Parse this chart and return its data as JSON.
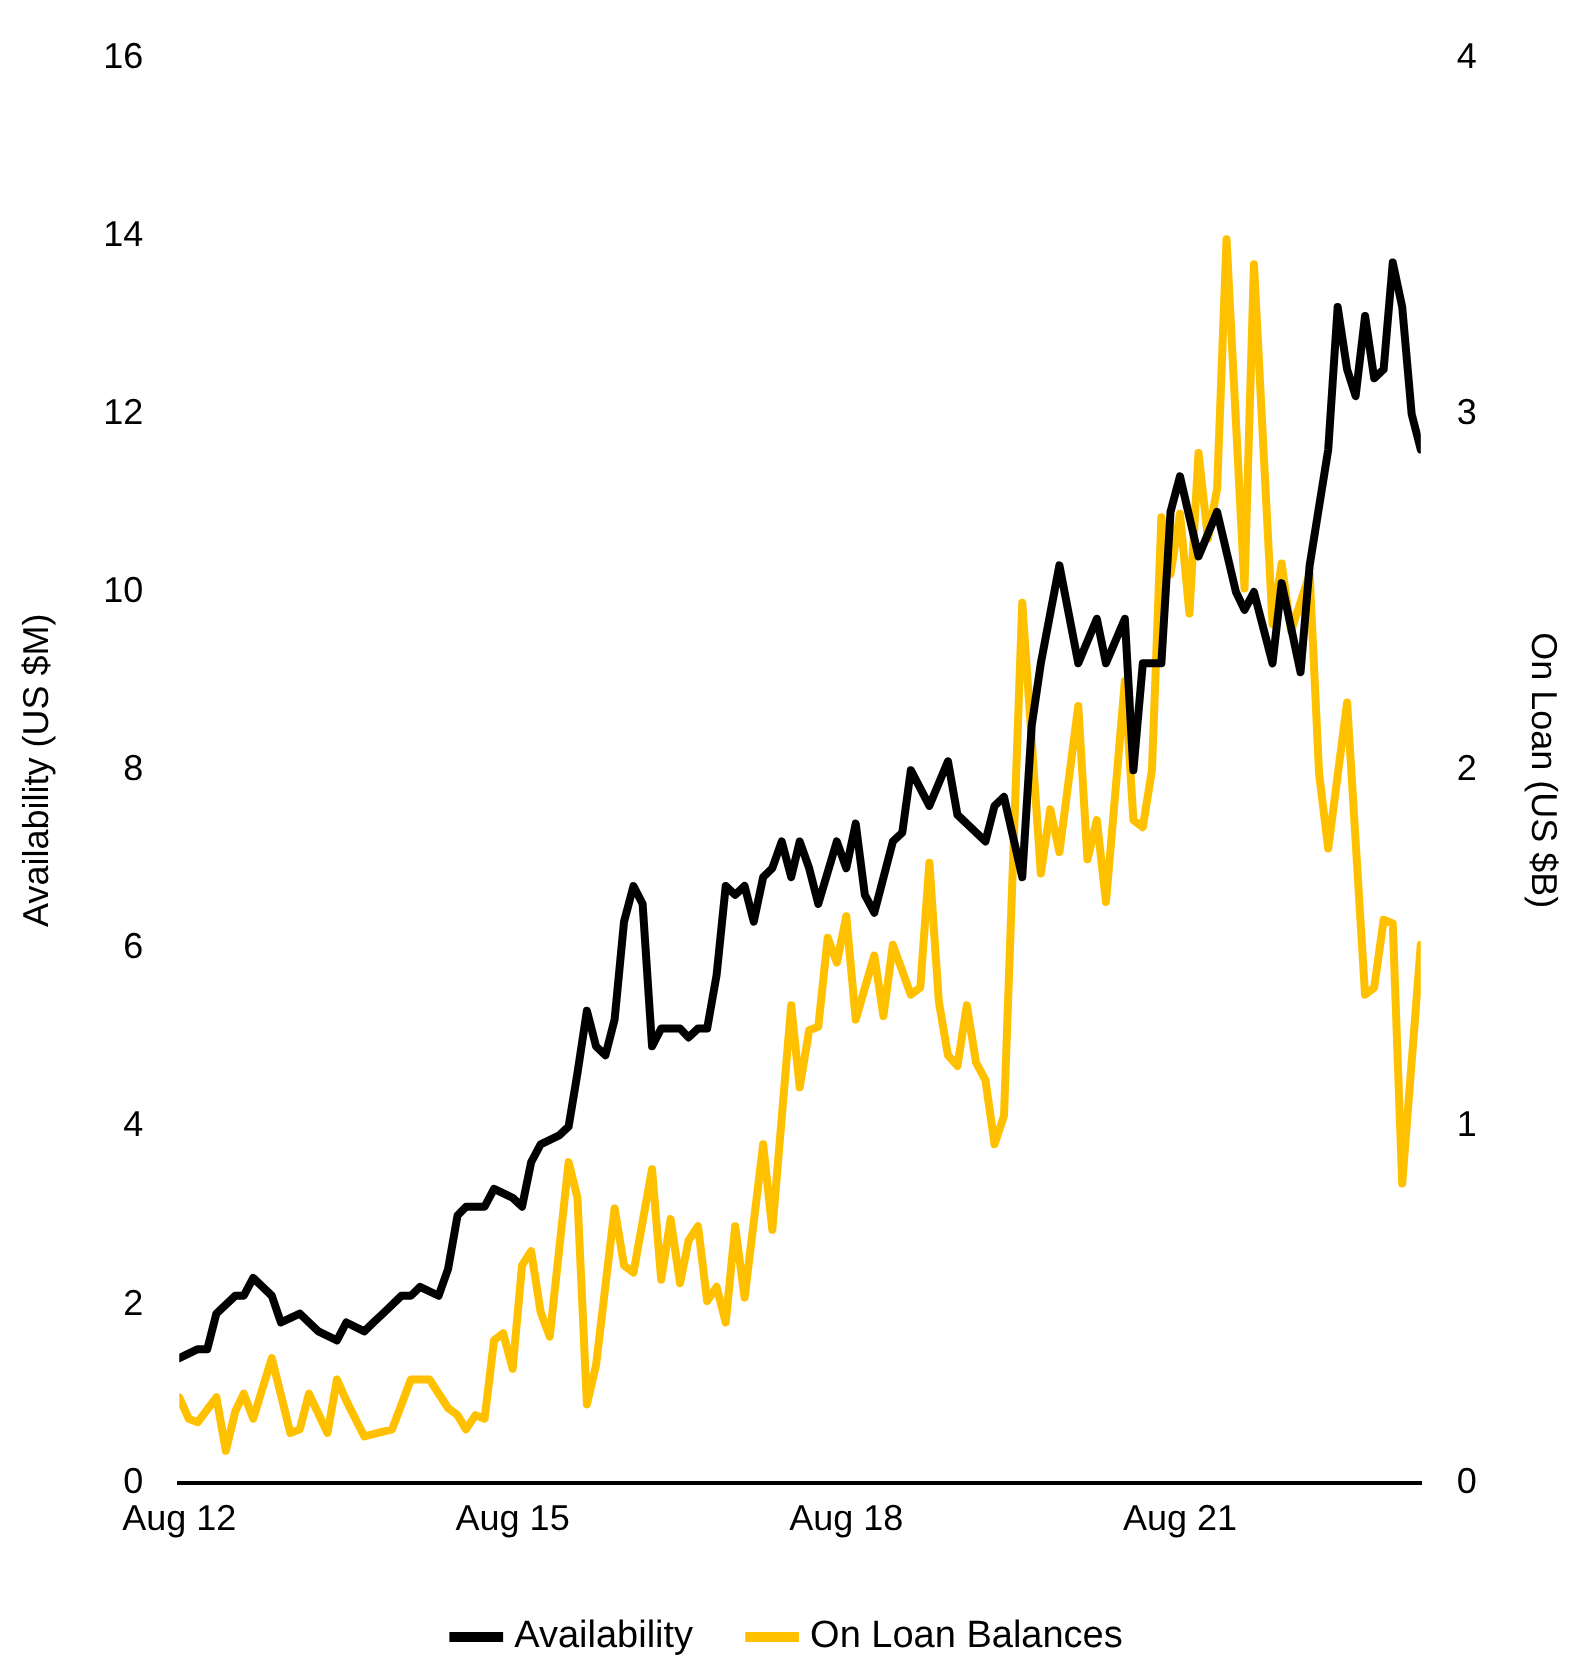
{
  "chart_data": {
    "type": "line",
    "ylabel": "Availability (US $M)",
    "y2label": "On Loan (US $B)",
    "xlim": [
      "2012-08",
      "2023-10"
    ],
    "xticks": [
      {
        "value": "2012-08",
        "label": "Aug 12"
      },
      {
        "value": "2015-08",
        "label": "Aug 15"
      },
      {
        "value": "2018-08",
        "label": "Aug 18"
      },
      {
        "value": "2021-08",
        "label": "Aug 21"
      }
    ],
    "ylim": [
      0,
      16
    ],
    "yticks": [
      0,
      2,
      4,
      6,
      8,
      10,
      12,
      14,
      16
    ],
    "y2lim": [
      0,
      4
    ],
    "y2ticks": [
      0,
      1,
      2,
      3,
      4
    ],
    "legend": "bottom",
    "grid": false,
    "marker": "none",
    "line_style": "solid",
    "series": [
      {
        "name": "Availability",
        "color": "#000000",
        "x": [
          "2012-08",
          "2012-10",
          "2012-11",
          "2012-12",
          "2013-02",
          "2013-03",
          "2013-04",
          "2013-06",
          "2013-07",
          "2013-09",
          "2013-10",
          "2013-11",
          "2014-01",
          "2014-02",
          "2014-04",
          "2014-05",
          "2014-06",
          "2014-08",
          "2014-09",
          "2014-10",
          "2014-12",
          "2015-01",
          "2015-02",
          "2015-03",
          "2015-05",
          "2015-06",
          "2015-08",
          "2015-09",
          "2015-10",
          "2015-11",
          "2016-01",
          "2016-02",
          "2016-03",
          "2016-04",
          "2016-05",
          "2016-06",
          "2016-07",
          "2016-08",
          "2016-09",
          "2016-10",
          "2016-11",
          "2016-12",
          "2017-02",
          "2017-03",
          "2017-04",
          "2017-05",
          "2017-06",
          "2017-07",
          "2017-08",
          "2017-09",
          "2017-10",
          "2017-11",
          "2017-12",
          "2018-01",
          "2018-02",
          "2018-03",
          "2018-04",
          "2018-05",
          "2018-07",
          "2018-08",
          "2018-09",
          "2018-10",
          "2018-11",
          "2019-01",
          "2019-02",
          "2019-03",
          "2019-05",
          "2019-07",
          "2019-08",
          "2019-11",
          "2019-12",
          "2020-01",
          "2020-03",
          "2020-04",
          "2020-05",
          "2020-07",
          "2020-09",
          "2020-11",
          "2020-12",
          "2021-02",
          "2021-03",
          "2021-04",
          "2021-06",
          "2021-07",
          "2021-08",
          "2021-10",
          "2021-12",
          "2022-02",
          "2022-03",
          "2022-04",
          "2022-06",
          "2022-07",
          "2022-09",
          "2022-10",
          "2022-12",
          "2023-01",
          "2023-02",
          "2023-03",
          "2023-04",
          "2023-05",
          "2023-06",
          "2023-07",
          "2023-08",
          "2023-09",
          "2023-10"
        ],
        "values": [
          1.4,
          1.5,
          1.5,
          1.9,
          2.1,
          2.1,
          2.3,
          2.1,
          1.8,
          1.9,
          1.8,
          1.7,
          1.6,
          1.8,
          1.7,
          1.8,
          1.9,
          2.1,
          2.1,
          2.2,
          2.1,
          2.4,
          3.0,
          3.1,
          3.1,
          3.3,
          3.2,
          3.1,
          3.6,
          3.8,
          3.9,
          4.0,
          4.6,
          5.3,
          4.9,
          4.8,
          5.2,
          6.3,
          6.7,
          6.5,
          4.9,
          5.1,
          5.1,
          5.0,
          5.1,
          5.1,
          5.7,
          6.7,
          6.6,
          6.7,
          6.3,
          6.8,
          6.9,
          7.2,
          6.8,
          7.2,
          6.9,
          6.5,
          7.2,
          6.9,
          7.4,
          6.6,
          6.4,
          7.2,
          7.3,
          8.0,
          7.6,
          8.1,
          7.5,
          7.2,
          7.6,
          7.7,
          6.8,
          8.5,
          9.2,
          10.3,
          9.2,
          9.7,
          9.2,
          9.7,
          8.0,
          9.2,
          9.2,
          10.9,
          11.3,
          10.4,
          10.9,
          10.0,
          9.8,
          10.0,
          9.2,
          10.1,
          9.1,
          10.3,
          11.6,
          13.2,
          12.5,
          12.2,
          13.1,
          12.4,
          12.5,
          13.7,
          13.2,
          12.0,
          11.6
        ]
      },
      {
        "name": "On Loan Balances",
        "color": "#ffc000",
        "axis": "y2",
        "x": [
          "2012-08",
          "2012-09",
          "2012-10",
          "2012-12",
          "2013-01",
          "2013-02",
          "2013-03",
          "2013-04",
          "2013-06",
          "2013-08",
          "2013-09",
          "2013-10",
          "2013-12",
          "2014-01",
          "2014-02",
          "2014-04",
          "2014-07",
          "2014-09",
          "2014-11",
          "2015-01",
          "2015-02",
          "2015-03",
          "2015-04",
          "2015-05",
          "2015-06",
          "2015-07",
          "2015-08",
          "2015-09",
          "2015-10",
          "2015-11",
          "2015-12",
          "2016-02",
          "2016-03",
          "2016-04",
          "2016-05",
          "2016-07",
          "2016-08",
          "2016-09",
          "2016-11",
          "2016-12",
          "2017-01",
          "2017-02",
          "2017-03",
          "2017-04",
          "2017-05",
          "2017-06",
          "2017-07",
          "2017-08",
          "2017-09",
          "2017-11",
          "2017-12",
          "2018-02",
          "2018-03",
          "2018-04",
          "2018-05",
          "2018-06",
          "2018-07",
          "2018-08",
          "2018-09",
          "2018-11",
          "2018-12",
          "2019-01",
          "2019-03",
          "2019-04",
          "2019-05",
          "2019-06",
          "2019-07",
          "2019-08",
          "2019-09",
          "2019-10",
          "2019-11",
          "2019-12",
          "2020-01",
          "2020-03",
          "2020-05",
          "2020-06",
          "2020-07",
          "2020-09",
          "2020-10",
          "2020-11",
          "2020-12",
          "2021-02",
          "2021-03",
          "2021-04",
          "2021-05",
          "2021-06",
          "2021-07",
          "2021-08",
          "2021-09",
          "2021-10",
          "2021-11",
          "2021-12",
          "2022-01",
          "2022-03",
          "2022-04",
          "2022-06",
          "2022-07",
          "2022-08",
          "2022-10",
          "2022-11",
          "2022-12",
          "2023-02",
          "2023-04",
          "2023-05",
          "2023-06",
          "2023-07",
          "2023-08",
          "2023-10"
        ],
        "values": [
          0.24,
          0.18,
          0.17,
          0.24,
          0.09,
          0.2,
          0.25,
          0.18,
          0.35,
          0.14,
          0.15,
          0.25,
          0.14,
          0.29,
          0.23,
          0.13,
          0.15,
          0.29,
          0.29,
          0.21,
          0.19,
          0.15,
          0.19,
          0.18,
          0.4,
          0.42,
          0.32,
          0.61,
          0.65,
          0.48,
          0.41,
          0.9,
          0.8,
          0.22,
          0.33,
          0.77,
          0.61,
          0.59,
          0.88,
          0.57,
          0.74,
          0.56,
          0.68,
          0.72,
          0.51,
          0.55,
          0.45,
          0.72,
          0.52,
          0.95,
          0.71,
          1.34,
          1.11,
          1.27,
          1.28,
          1.53,
          1.46,
          1.59,
          1.3,
          1.48,
          1.31,
          1.51,
          1.37,
          1.39,
          1.74,
          1.35,
          1.2,
          1.17,
          1.34,
          1.18,
          1.13,
          0.95,
          1.03,
          2.47,
          1.71,
          1.89,
          1.77,
          2.18,
          1.75,
          1.86,
          1.63,
          2.25,
          1.86,
          1.84,
          2.0,
          2.71,
          2.55,
          2.72,
          2.44,
          2.89,
          2.65,
          2.79,
          3.49,
          2.51,
          3.42,
          2.41,
          2.58,
          2.39,
          2.55,
          1.99,
          1.78,
          2.19,
          1.37,
          1.39,
          1.58,
          1.57,
          0.84,
          1.51
        ]
      }
    ]
  }
}
